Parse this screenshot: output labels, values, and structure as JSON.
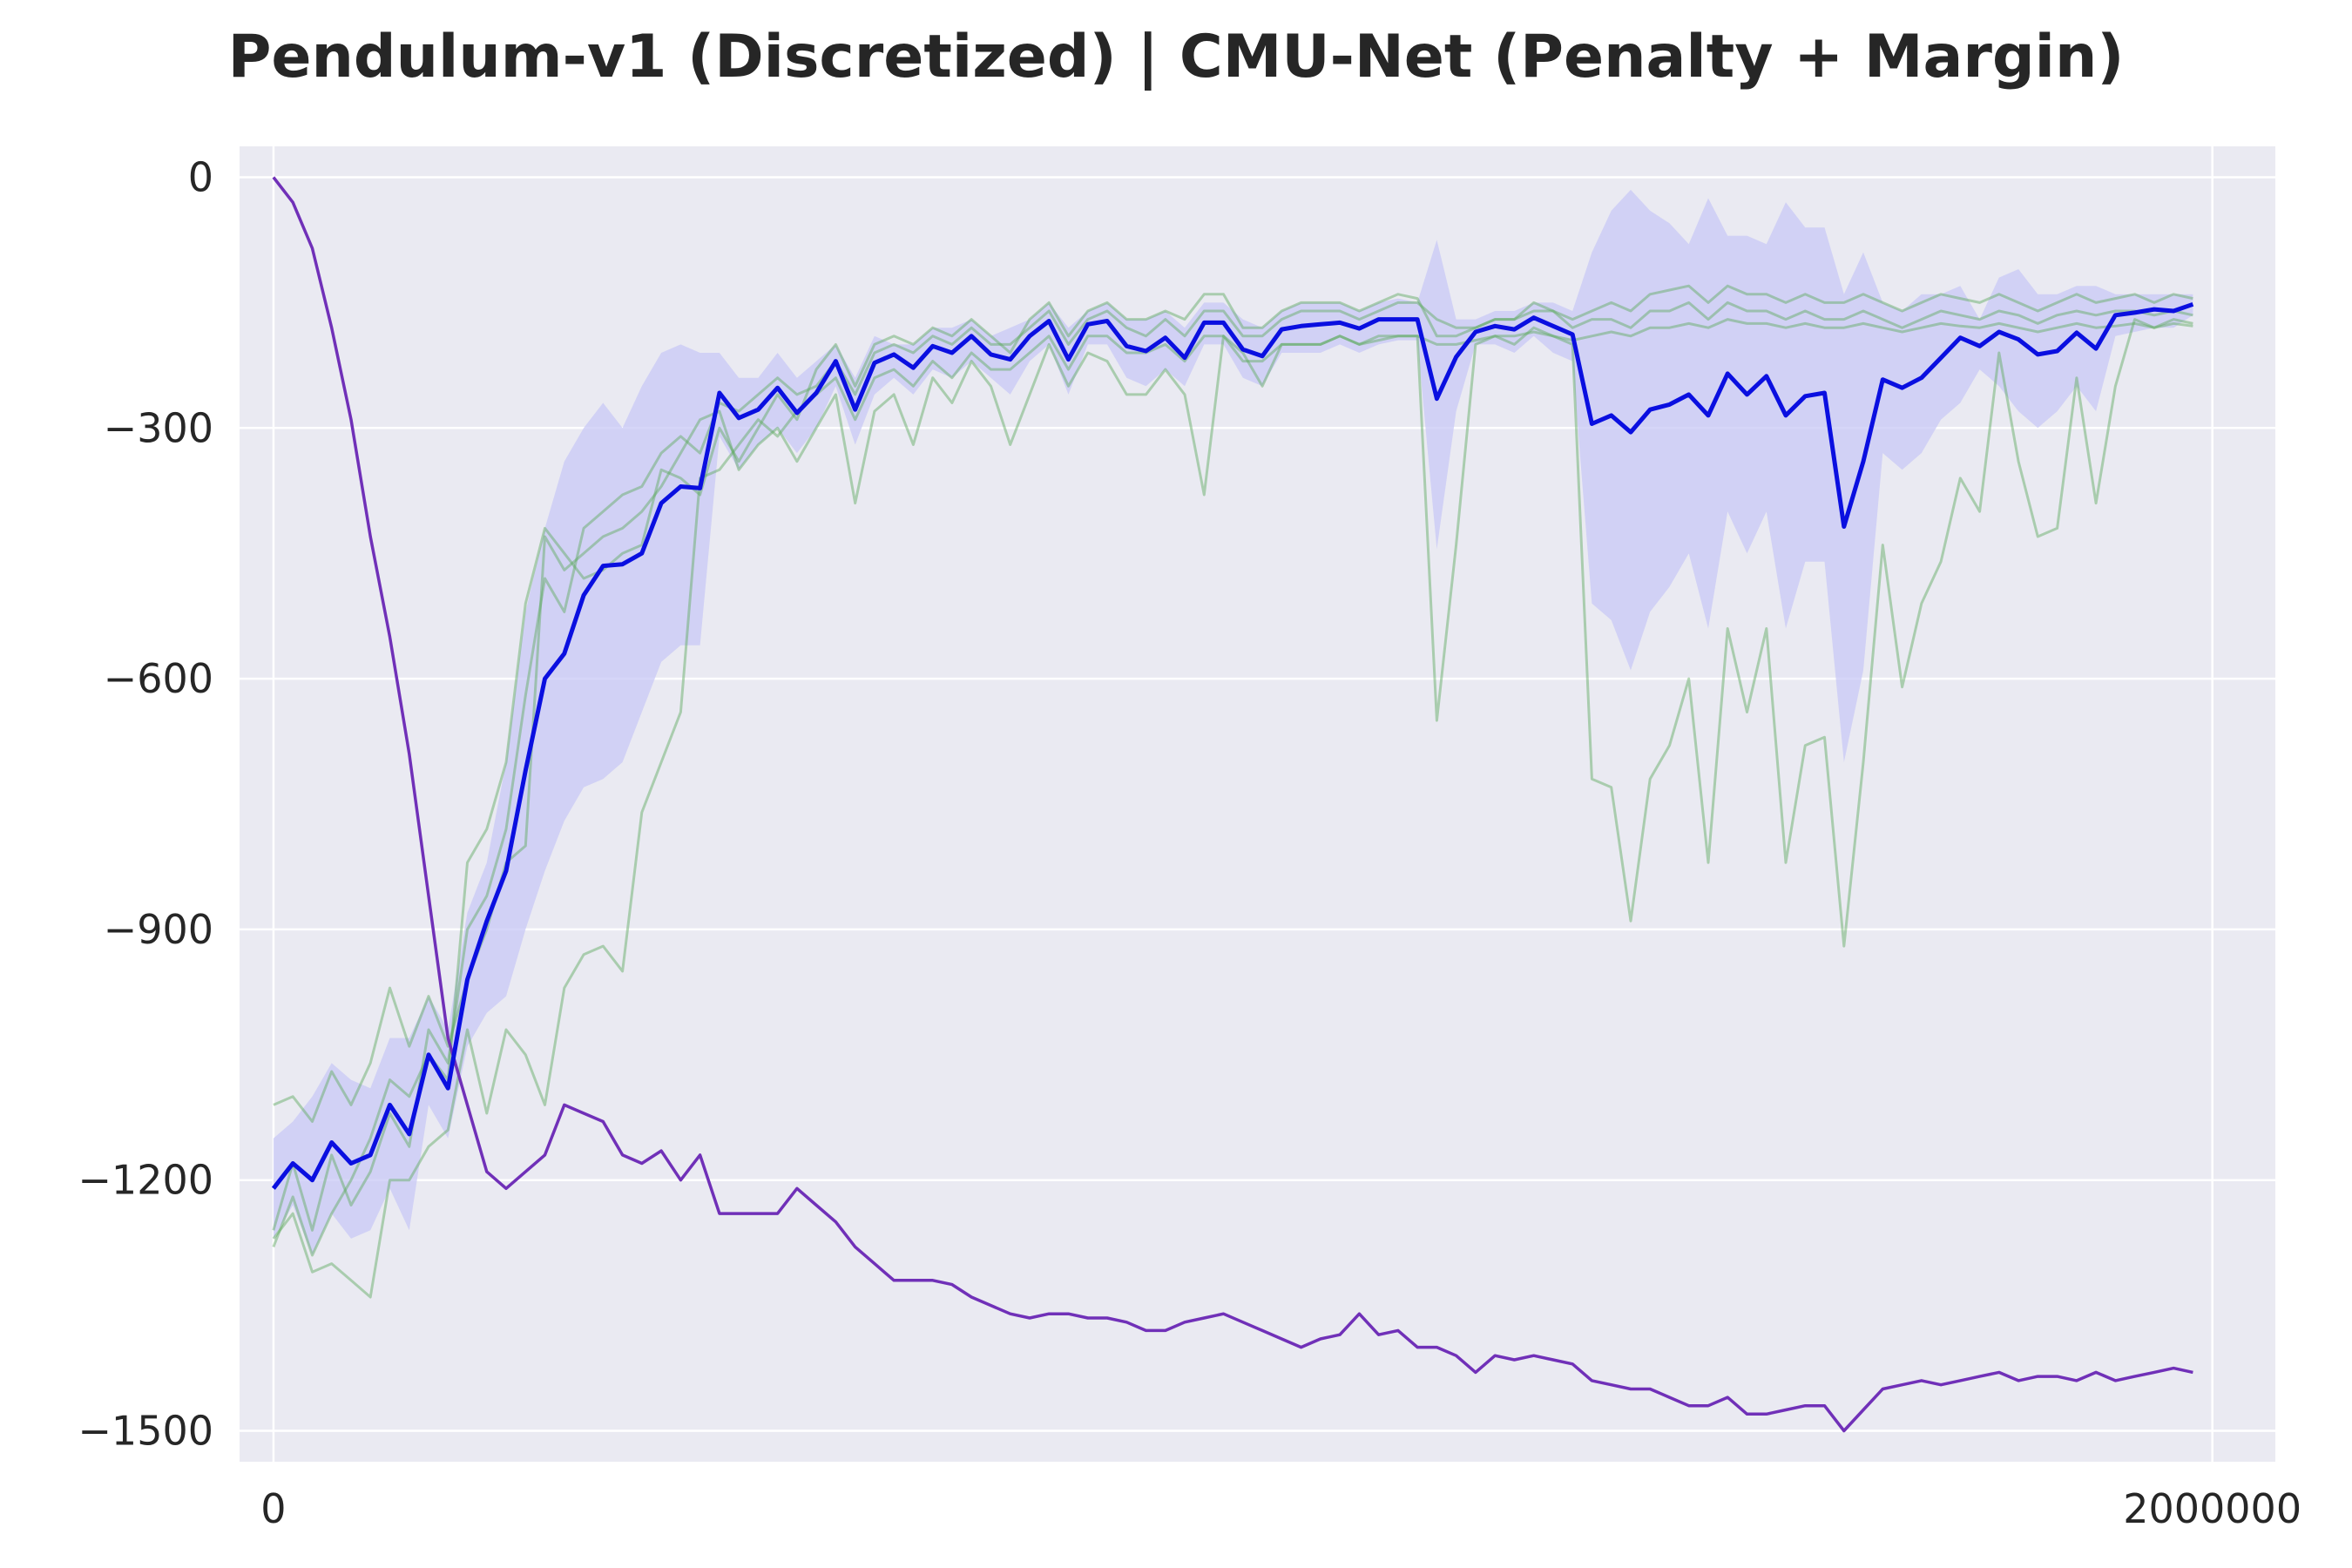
{
  "chart_data": {
    "type": "line",
    "title": "Pendulum-v1 (Discretized) | CMU-Net (Penalty + Margin)",
    "xlabel": "",
    "ylabel": "",
    "xlim": [
      -35000,
      2065000
    ],
    "ylim": [
      -1537,
      37
    ],
    "x_ticks": [
      {
        "value": 0,
        "label": "0"
      },
      {
        "value": 2000000,
        "label": "2000000"
      }
    ],
    "y_ticks": [
      {
        "value": 0,
        "label": "0"
      },
      {
        "value": -300,
        "label": "−300"
      },
      {
        "value": -600,
        "label": "−600"
      },
      {
        "value": -900,
        "label": "−900"
      },
      {
        "value": -1200,
        "label": "−1200"
      },
      {
        "value": -1500,
        "label": "−1500"
      }
    ],
    "grid": true,
    "background": "#eaeaf2",
    "colors": {
      "mean": "#0a0fe0",
      "band": "#c8c8f5",
      "seed": "#5aa85a",
      "other": "#7030b8"
    },
    "x_step": 20000,
    "mean": [
      -1210,
      -1180,
      -1200,
      -1155,
      -1180,
      -1170,
      -1110,
      -1145,
      -1050,
      -1090,
      -960,
      -890,
      -830,
      -710,
      -600,
      -570,
      -500,
      -465,
      -463,
      -450,
      -390,
      -370,
      -372,
      -258,
      -288,
      -278,
      -252,
      -282,
      -258,
      -220,
      -278,
      -222,
      -212,
      -228,
      -202,
      -210,
      -190,
      -212,
      -218,
      -190,
      -172,
      -218,
      -176,
      -172,
      -202,
      -208,
      -192,
      -216,
      -174,
      -174,
      -206,
      -214,
      -182,
      -178,
      -176,
      -174,
      -181,
      -170,
      -170,
      -170,
      -265,
      -215,
      -185,
      -178,
      -182,
      -168,
      -178,
      -188,
      -295,
      -285,
      -305,
      -278,
      -272,
      -260,
      -285,
      -235,
      -260,
      -238,
      -285,
      -262,
      -258,
      -418,
      -340,
      -242,
      -252,
      -240,
      -216,
      -192,
      -202,
      -185,
      -194,
      -212,
      -208,
      -186,
      -205,
      -165,
      -162,
      -158,
      -160,
      -152
    ],
    "band_upper": [
      -1150,
      -1130,
      -1100,
      -1060,
      -1080,
      -1090,
      -1030,
      -1030,
      -980,
      -1020,
      -880,
      -820,
      -700,
      -520,
      -420,
      -340,
      -300,
      -270,
      -300,
      -250,
      -210,
      -200,
      -210,
      -210,
      -240,
      -240,
      -210,
      -240,
      -220,
      -200,
      -240,
      -190,
      -200,
      -200,
      -180,
      -180,
      -170,
      -190,
      -180,
      -170,
      -150,
      -180,
      -160,
      -150,
      -170,
      -170,
      -160,
      -180,
      -150,
      -150,
      -170,
      -180,
      -160,
      -150,
      -150,
      -150,
      -160,
      -150,
      -145,
      -150,
      -75,
      -170,
      -170,
      -160,
      -160,
      -150,
      -150,
      -160,
      -90,
      -40,
      -15,
      -40,
      -55,
      -80,
      -25,
      -70,
      -70,
      -80,
      -30,
      -60,
      -60,
      -140,
      -90,
      -150,
      -160,
      -140,
      -140,
      -130,
      -170,
      -120,
      -110,
      -140,
      -140,
      -130,
      -130,
      -140,
      -140,
      -140,
      -140,
      -140
    ],
    "band_lower": [
      -1270,
      -1230,
      -1290,
      -1240,
      -1270,
      -1260,
      -1210,
      -1260,
      -1110,
      -1150,
      -1040,
      -1000,
      -980,
      -900,
      -830,
      -770,
      -730,
      -720,
      -700,
      -640,
      -580,
      -560,
      -560,
      -310,
      -350,
      -320,
      -300,
      -330,
      -300,
      -250,
      -320,
      -260,
      -240,
      -260,
      -230,
      -240,
      -220,
      -240,
      -260,
      -220,
      -200,
      -260,
      -200,
      -200,
      -240,
      -250,
      -230,
      -250,
      -200,
      -200,
      -240,
      -250,
      -210,
      -210,
      -210,
      -200,
      -210,
      -200,
      -195,
      -195,
      -445,
      -280,
      -200,
      -200,
      -210,
      -190,
      -210,
      -220,
      -510,
      -530,
      -590,
      -520,
      -490,
      -450,
      -540,
      -400,
      -450,
      -400,
      -540,
      -460,
      -460,
      -700,
      -590,
      -330,
      -350,
      -330,
      -290,
      -270,
      -230,
      -250,
      -280,
      -300,
      -280,
      -250,
      -280,
      -190,
      -185,
      -180,
      -180,
      -165
    ],
    "seeds": [
      [
        -1280,
        -1220,
        -1290,
        -1240,
        -1200,
        -1150,
        -1080,
        -1100,
        -1050,
        -1080,
        -820,
        -780,
        -700,
        -510,
        -420,
        -450,
        -480,
        -470,
        -450,
        -440,
        -350,
        -360,
        -380,
        -300,
        -340,
        -300,
        -260,
        -290,
        -230,
        -200,
        -250,
        -200,
        -190,
        -200,
        -180,
        -190,
        -170,
        -190,
        -210,
        -170,
        -150,
        -190,
        -160,
        -150,
        -170,
        -170,
        -160,
        -170,
        -140,
        -140,
        -180,
        -180,
        -160,
        -150,
        -150,
        -150,
        -160,
        -150,
        -140,
        -145,
        -190,
        -190,
        -180,
        -170,
        -170,
        -150,
        -160,
        -170,
        -160,
        -150,
        -160,
        -140,
        -135,
        -130,
        -150,
        -130,
        -140,
        -140,
        -150,
        -140,
        -150,
        -150,
        -140,
        -150,
        -160,
        -150,
        -140,
        -145,
        -150,
        -140,
        -150,
        -160,
        -150,
        -140,
        -150,
        -145,
        -140,
        -150,
        -140,
        -145
      ],
      [
        -1260,
        -1180,
        -1260,
        -1170,
        -1230,
        -1190,
        -1120,
        -1160,
        -1020,
        -1060,
        -900,
        -860,
        -780,
        -620,
        -480,
        -520,
        -420,
        -400,
        -380,
        -370,
        -330,
        -310,
        -330,
        -270,
        -280,
        -260,
        -240,
        -260,
        -250,
        -220,
        -260,
        -210,
        -200,
        -210,
        -190,
        -200,
        -180,
        -200,
        -200,
        -180,
        -160,
        -200,
        -170,
        -160,
        -180,
        -190,
        -170,
        -190,
        -160,
        -160,
        -190,
        -190,
        -170,
        -160,
        -160,
        -160,
        -170,
        -160,
        -150,
        -150,
        -170,
        -180,
        -180,
        -170,
        -170,
        -160,
        -160,
        -180,
        -170,
        -170,
        -180,
        -160,
        -160,
        -150,
        -170,
        -150,
        -160,
        -160,
        -170,
        -160,
        -170,
        -170,
        -160,
        -170,
        -180,
        -170,
        -160,
        -165,
        -170,
        -160,
        -165,
        -175,
        -165,
        -160,
        -165,
        -160,
        -160,
        -165,
        -160,
        -165
      ],
      [
        -1110,
        -1100,
        -1130,
        -1070,
        -1110,
        -1060,
        -970,
        -1040,
        -980,
        -1040,
        -960,
        -900,
        -820,
        -800,
        -430,
        -470,
        -450,
        -430,
        -420,
        -400,
        -370,
        -330,
        -290,
        -280,
        -350,
        -320,
        -300,
        -340,
        -300,
        -260,
        -390,
        -280,
        -260,
        -320,
        -240,
        -270,
        -220,
        -250,
        -320,
        -260,
        -200,
        -250,
        -210,
        -220,
        -260,
        -260,
        -230,
        -260,
        -380,
        -190,
        -210,
        -250,
        -200,
        -200,
        -200,
        -190,
        -200,
        -190,
        -190,
        -190,
        -650,
        -440,
        -200,
        -190,
        -200,
        -180,
        -190,
        -200,
        -720,
        -730,
        -890,
        -720,
        -680,
        -600,
        -820,
        -540,
        -640,
        -540,
        -820,
        -680,
        -670,
        -920,
        -700,
        -440,
        -610,
        -510,
        -460,
        -360,
        -400,
        -210,
        -340,
        -430,
        -420,
        -240,
        -390,
        -250,
        -170,
        -180,
        -170,
        -175
      ],
      [
        -1270,
        -1240,
        -1310,
        -1300,
        -1320,
        -1340,
        -1200,
        -1200,
        -1160,
        -1140,
        -1020,
        -1120,
        -1020,
        -1050,
        -1110,
        -970,
        -930,
        -920,
        -950,
        -760,
        -700,
        -640,
        -360,
        -350,
        -320,
        -290,
        -310,
        -280,
        -260,
        -240,
        -290,
        -240,
        -230,
        -250,
        -220,
        -240,
        -210,
        -230,
        -230,
        -210,
        -190,
        -230,
        -190,
        -190,
        -210,
        -210,
        -200,
        -220,
        -190,
        -190,
        -220,
        -220,
        -200,
        -200,
        -200,
        -190,
        -200,
        -195,
        -190,
        -190,
        -200,
        -200,
        -195,
        -190,
        -190,
        -185,
        -190,
        -195,
        -190,
        -185,
        -190,
        -180,
        -180,
        -175,
        -180,
        -170,
        -175,
        -175,
        -180,
        -175,
        -180,
        -180,
        -175,
        -180,
        -185,
        -180,
        -175,
        -178,
        -180,
        -175,
        -180,
        -185,
        -180,
        -175,
        -180,
        -178,
        -175,
        -180,
        -175,
        -178
      ]
    ],
    "other": [
      0,
      -30,
      -85,
      -180,
      -290,
      -430,
      -550,
      -690,
      -860,
      -1030,
      -1110,
      -1190,
      -1210,
      -1190,
      -1170,
      -1110,
      -1120,
      -1130,
      -1170,
      -1180,
      -1165,
      -1200,
      -1170,
      -1240,
      -1240,
      -1240,
      -1240,
      -1210,
      -1230,
      -1250,
      -1280,
      -1300,
      -1320,
      -1320,
      -1320,
      -1325,
      -1340,
      -1350,
      -1360,
      -1365,
      -1360,
      -1360,
      -1365,
      -1365,
      -1370,
      -1380,
      -1380,
      -1370,
      -1365,
      -1360,
      -1370,
      -1380,
      -1390,
      -1400,
      -1390,
      -1385,
      -1360,
      -1385,
      -1380,
      -1400,
      -1400,
      -1410,
      -1430,
      -1410,
      -1415,
      -1410,
      -1415,
      -1420,
      -1440,
      -1445,
      -1450,
      -1450,
      -1460,
      -1470,
      -1470,
      -1460,
      -1480,
      -1480,
      -1475,
      -1470,
      -1470,
      -1500,
      -1475,
      -1450,
      -1445,
      -1440,
      -1445,
      -1440,
      -1435,
      -1430,
      -1440,
      -1435,
      -1435,
      -1440,
      -1430,
      -1440,
      -1435,
      -1430,
      -1425,
      -1430
    ]
  }
}
